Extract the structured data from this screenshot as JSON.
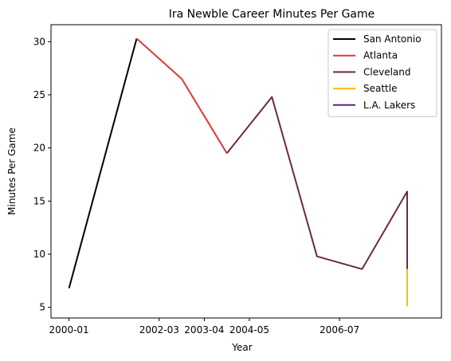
{
  "chart_data": {
    "type": "line",
    "title": "Ira Newble Career Minutes Per Game",
    "xlabel": "Year",
    "ylabel": "Minutes Per Game",
    "x_ticks": [
      "2000-01",
      "2002-03",
      "2003-04",
      "2004-05",
      "2006-07"
    ],
    "y_ticks": [
      5,
      10,
      15,
      20,
      25,
      30
    ],
    "ylim": [
      4.0,
      31.6
    ],
    "xlim": [
      1999.6,
      2008.26
    ],
    "grid": false,
    "legend_position": "top-right",
    "series": [
      {
        "name": "San Antonio",
        "color": "#000000",
        "points": [
          [
            2000.0,
            6.8
          ],
          [
            2001.5,
            30.3
          ]
        ]
      },
      {
        "name": "Atlanta",
        "color": "#dc3a3a",
        "points": [
          [
            2001.5,
            30.3
          ],
          [
            2002.5,
            26.5
          ],
          [
            2003.5,
            19.5
          ]
        ]
      },
      {
        "name": "Cleveland",
        "color": "#6e2a40",
        "points": [
          [
            2003.5,
            19.5
          ],
          [
            2004.5,
            24.8
          ],
          [
            2005.5,
            9.8
          ],
          [
            2006.5,
            8.6
          ],
          [
            2007.5,
            15.9
          ],
          [
            2007.5,
            8.6
          ]
        ]
      },
      {
        "name": "Seattle",
        "color": "#fdbb12",
        "points": [
          [
            2007.5,
            8.6
          ],
          [
            2007.5,
            5.1
          ]
        ]
      },
      {
        "name": "L.A. Lakers",
        "color": "#552583",
        "points": []
      }
    ]
  }
}
